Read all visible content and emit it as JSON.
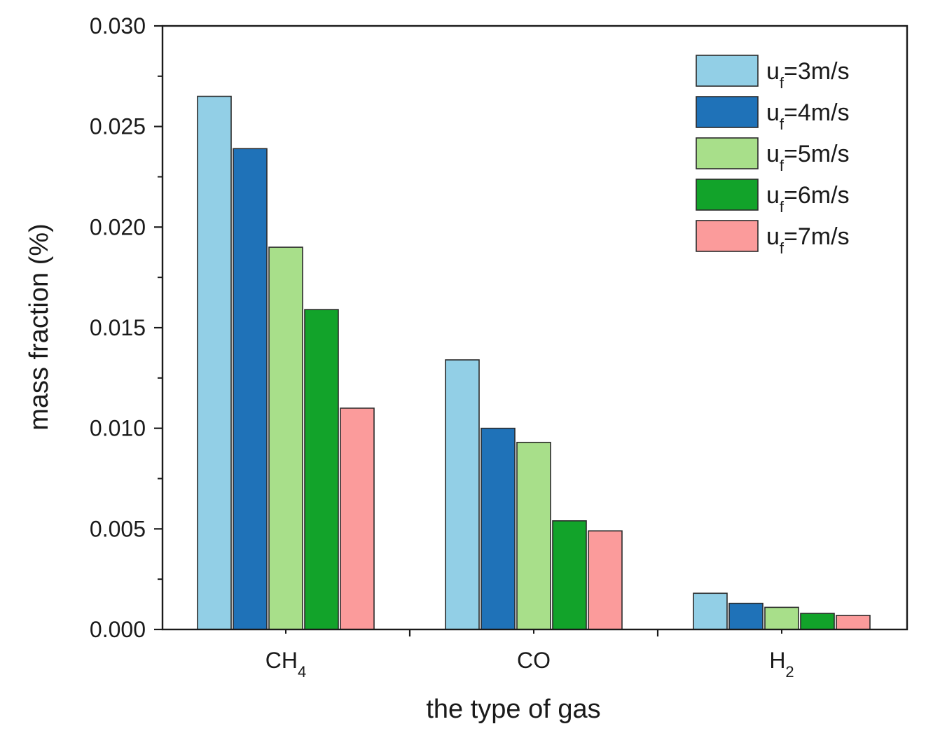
{
  "chart_data": {
    "type": "bar",
    "title": "",
    "xlabel": "the type of gas",
    "ylabel": "mass fraction (%)",
    "ylim": [
      0,
      0.03
    ],
    "yticks": [
      "0.000",
      "0.005",
      "0.010",
      "0.015",
      "0.020",
      "0.025",
      "0.030"
    ],
    "categories": [
      {
        "base": "CH",
        "sub": "4"
      },
      {
        "base": "CO",
        "sub": ""
      },
      {
        "base": "H",
        "sub": "2"
      }
    ],
    "legend_position": "top-right",
    "series": [
      {
        "name_base": "u",
        "name_sub": "f",
        "name_rest": "=3m/s",
        "color": "#92cfe6",
        "values": [
          0.0265,
          0.0134,
          0.0018
        ]
      },
      {
        "name_base": "u",
        "name_sub": "f",
        "name_rest": "=4m/s",
        "color": "#1f72b8",
        "values": [
          0.0239,
          0.01,
          0.0013
        ]
      },
      {
        "name_base": "u",
        "name_sub": "f",
        "name_rest": "=5m/s",
        "color": "#a8df8a",
        "values": [
          0.019,
          0.0093,
          0.0011
        ]
      },
      {
        "name_base": "u",
        "name_sub": "f",
        "name_rest": "=6m/s",
        "color": "#12a32a",
        "values": [
          0.0159,
          0.0054,
          0.0008
        ]
      },
      {
        "name_base": "u",
        "name_sub": "f",
        "name_rest": "=7m/s",
        "color": "#fb9b9b",
        "values": [
          0.011,
          0.0049,
          0.0007
        ]
      }
    ]
  }
}
